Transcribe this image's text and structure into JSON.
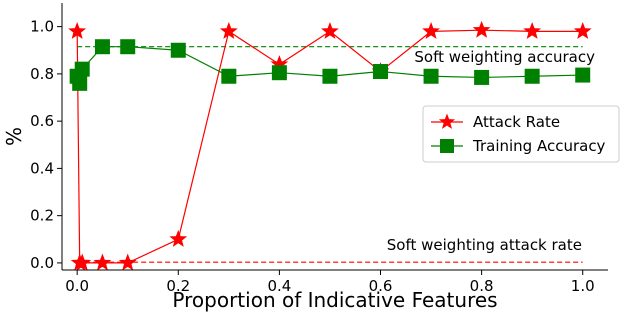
{
  "chart_data": {
    "type": "line",
    "title": "",
    "xlabel": "Proportion of Indicative Features",
    "ylabel": "%",
    "xlim": [
      -0.03,
      1.05
    ],
    "ylim": [
      -0.03,
      1.1
    ],
    "xticks": [
      0.0,
      0.2,
      0.4,
      0.6,
      0.8,
      1.0
    ],
    "xtick_labels": [
      "0.0",
      "0.2",
      "0.4",
      "0.6",
      "0.8",
      "1.0"
    ],
    "yticks": [
      0.0,
      0.2,
      0.4,
      0.6,
      0.8,
      1.0
    ],
    "ytick_labels": [
      "0.0",
      "0.2",
      "0.4",
      "0.6",
      "0.8",
      "1.0"
    ],
    "grid": false,
    "legend_position": "center-right",
    "series": [
      {
        "name": "Attack Rate",
        "color": "#ff0000",
        "marker": "star",
        "x": [
          0.0,
          0.005,
          0.01,
          0.05,
          0.1,
          0.2,
          0.3,
          0.4,
          0.5,
          0.6,
          0.7,
          0.8,
          0.9,
          1.0
        ],
        "y": [
          0.98,
          0.0,
          0.0,
          0.0,
          0.0,
          0.1,
          0.98,
          0.84,
          0.98,
          0.81,
          0.98,
          0.985,
          0.98,
          0.98
        ]
      },
      {
        "name": "Training Accuracy",
        "color": "#008000",
        "marker": "square",
        "x": [
          0.0,
          0.005,
          0.01,
          0.05,
          0.1,
          0.2,
          0.3,
          0.4,
          0.5,
          0.6,
          0.7,
          0.8,
          0.9,
          1.0
        ],
        "y": [
          0.79,
          0.76,
          0.82,
          0.915,
          0.915,
          0.9,
          0.79,
          0.805,
          0.79,
          0.81,
          0.79,
          0.785,
          0.79,
          0.795
        ]
      }
    ],
    "reference_lines": [
      {
        "label": "Soft weighting accuracy",
        "y": 0.915,
        "color": "#008000",
        "x_start": 0.0,
        "x_end": 1.0
      },
      {
        "label": "Soft weighting attack rate",
        "y": 0.003,
        "color": "#ff0000",
        "x_start": 0.0,
        "x_end": 1.0
      }
    ]
  }
}
